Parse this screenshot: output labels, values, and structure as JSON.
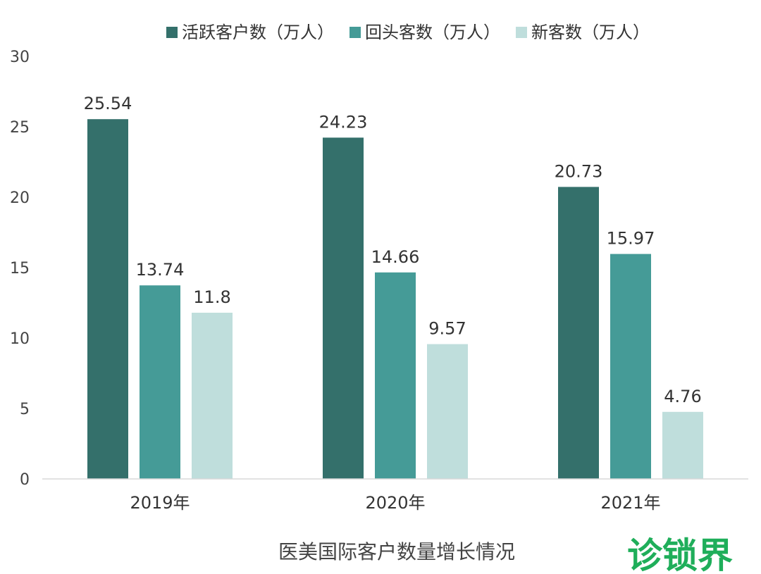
{
  "chart_data": {
    "type": "bar",
    "title": "",
    "subtitle": "医美国际客户数量增长情况",
    "categories": [
      "2019年",
      "2020年",
      "2021年"
    ],
    "series": [
      {
        "name": "活跃客户数（万人）",
        "values": [
          25.54,
          24.23,
          20.73
        ],
        "color": "#34706b"
      },
      {
        "name": "回头客数（万人）",
        "values": [
          13.74,
          14.66,
          15.97
        ],
        "color": "#459b97"
      },
      {
        "name": "新客数（万人）",
        "values": [
          11.8,
          9.57,
          4.76
        ],
        "color": "#bfdedc"
      }
    ],
    "ylim": [
      0,
      30
    ],
    "yticks": [
      "0",
      "5",
      "10",
      "15",
      "20",
      "25",
      "30"
    ],
    "xlabel": "",
    "ylabel": "",
    "grid": false,
    "legend_position": "top-center"
  },
  "brand": {
    "logo_text": "诊锁界",
    "color": "#1fae5a"
  }
}
